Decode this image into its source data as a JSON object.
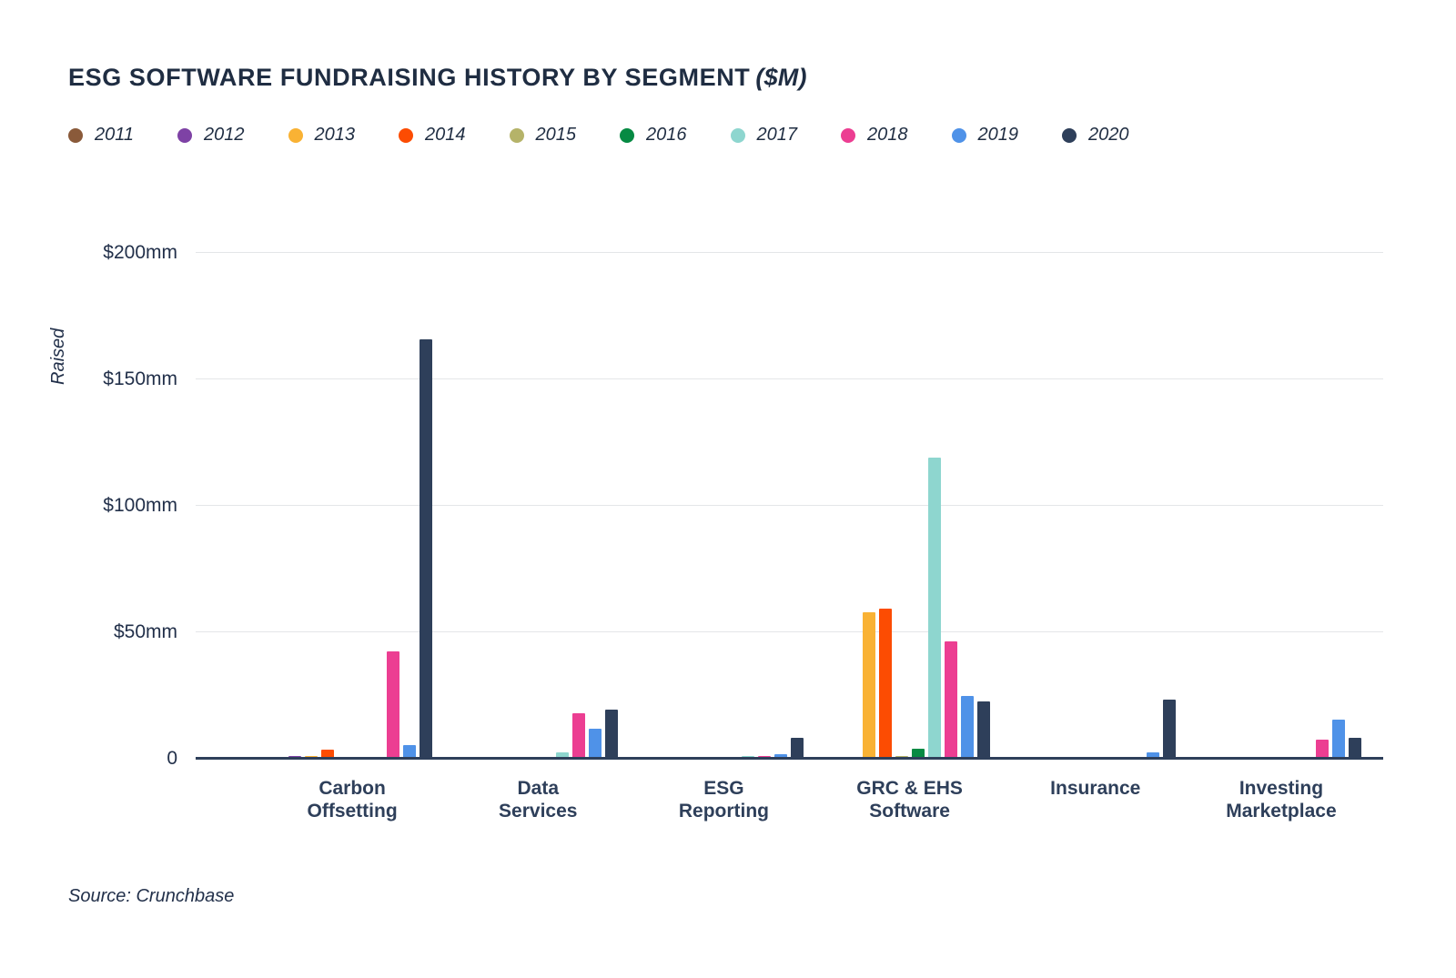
{
  "title": "ESG SOFTWARE FUNDRAISING HISTORY BY SEGMENT",
  "title_suffix": "($M)",
  "ylabel": "Raised",
  "source": "Source: Crunchbase",
  "chart_data": {
    "type": "bar",
    "categories": [
      "Carbon Offsetting",
      "Data Services",
      "ESG Reporting",
      "GRC & EHS Software",
      "Insurance",
      "Investing Marketplace"
    ],
    "category_lines": [
      [
        "Carbon",
        "Offsetting"
      ],
      [
        "Data",
        "Services"
      ],
      [
        "ESG",
        "Reporting"
      ],
      [
        "GRC & EHS",
        "Software"
      ],
      [
        "Insurance"
      ],
      [
        "Investing",
        "Marketplace"
      ]
    ],
    "series": [
      {
        "name": "2011",
        "color": "#8a5a3a",
        "values": [
          0.5,
          0,
          0,
          0,
          0,
          0
        ]
      },
      {
        "name": "2012",
        "color": "#7e42a5",
        "values": [
          1,
          0,
          0,
          0,
          0,
          0
        ]
      },
      {
        "name": "2013",
        "color": "#f9b234",
        "values": [
          1,
          0,
          0,
          58,
          0,
          0
        ]
      },
      {
        "name": "2014",
        "color": "#fc4c02",
        "values": [
          3.5,
          0,
          0,
          59.5,
          0,
          0
        ]
      },
      {
        "name": "2015",
        "color": "#b5b369",
        "values": [
          0,
          0,
          0,
          1,
          0,
          0
        ]
      },
      {
        "name": "2016",
        "color": "#068a43",
        "values": [
          0,
          0,
          0,
          4,
          0,
          0
        ]
      },
      {
        "name": "2017",
        "color": "#8ed6cf",
        "values": [
          0,
          2.5,
          1,
          119,
          0,
          0
        ]
      },
      {
        "name": "2018",
        "color": "#ec3e92",
        "values": [
          42.5,
          18,
          1,
          46.5,
          0,
          7.5
        ]
      },
      {
        "name": "2019",
        "color": "#4f92e8",
        "values": [
          5.5,
          12,
          1.8,
          25,
          2.5,
          15.5
        ]
      },
      {
        "name": "2020",
        "color": "#2e3f5a",
        "values": [
          166,
          19.5,
          8.3,
          22.5,
          23.5,
          8.3
        ]
      }
    ],
    "ylim": [
      0,
      200
    ],
    "yticks": [
      {
        "label": "$200mm",
        "value": 200
      },
      {
        "label": "$150mm",
        "value": 150
      },
      {
        "label": "$100mm",
        "value": 100
      },
      {
        "label": "$50mm",
        "value": 50
      },
      {
        "label": "0",
        "value": 0
      }
    ],
    "legend_position": "top",
    "grid": true
  }
}
